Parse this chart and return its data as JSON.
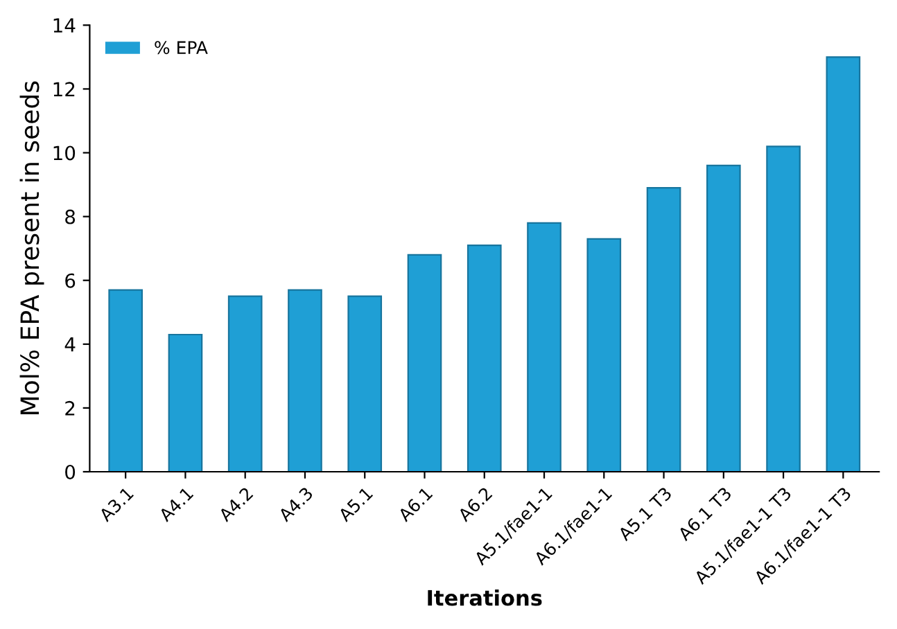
{
  "chart_data": {
    "type": "bar",
    "xlabel": "Iterations",
    "ylabel": "Mol% EPA present in seeds",
    "categories": [
      "A3.1",
      "A4.1",
      "A4.2",
      "A4.3",
      "A5.1",
      "A6.1",
      "A6.2",
      "A5.1/fae1-1",
      "A6.1/fae1-1",
      "A5.1 T3",
      "A6.1 T3",
      "A5.1/fae1-1 T3",
      "A6.1/fae1-1 T3"
    ],
    "series": [
      {
        "name": "% EPA",
        "color": "#1f9fd5",
        "values": [
          5.7,
          4.3,
          5.5,
          5.7,
          5.5,
          6.8,
          7.1,
          7.8,
          7.3,
          8.9,
          9.6,
          10.2,
          13.0
        ]
      }
    ],
    "ylim": [
      0,
      14
    ],
    "yticks": [
      0,
      2,
      4,
      6,
      8,
      10,
      12,
      14
    ],
    "grid": false,
    "legend": "top left"
  }
}
